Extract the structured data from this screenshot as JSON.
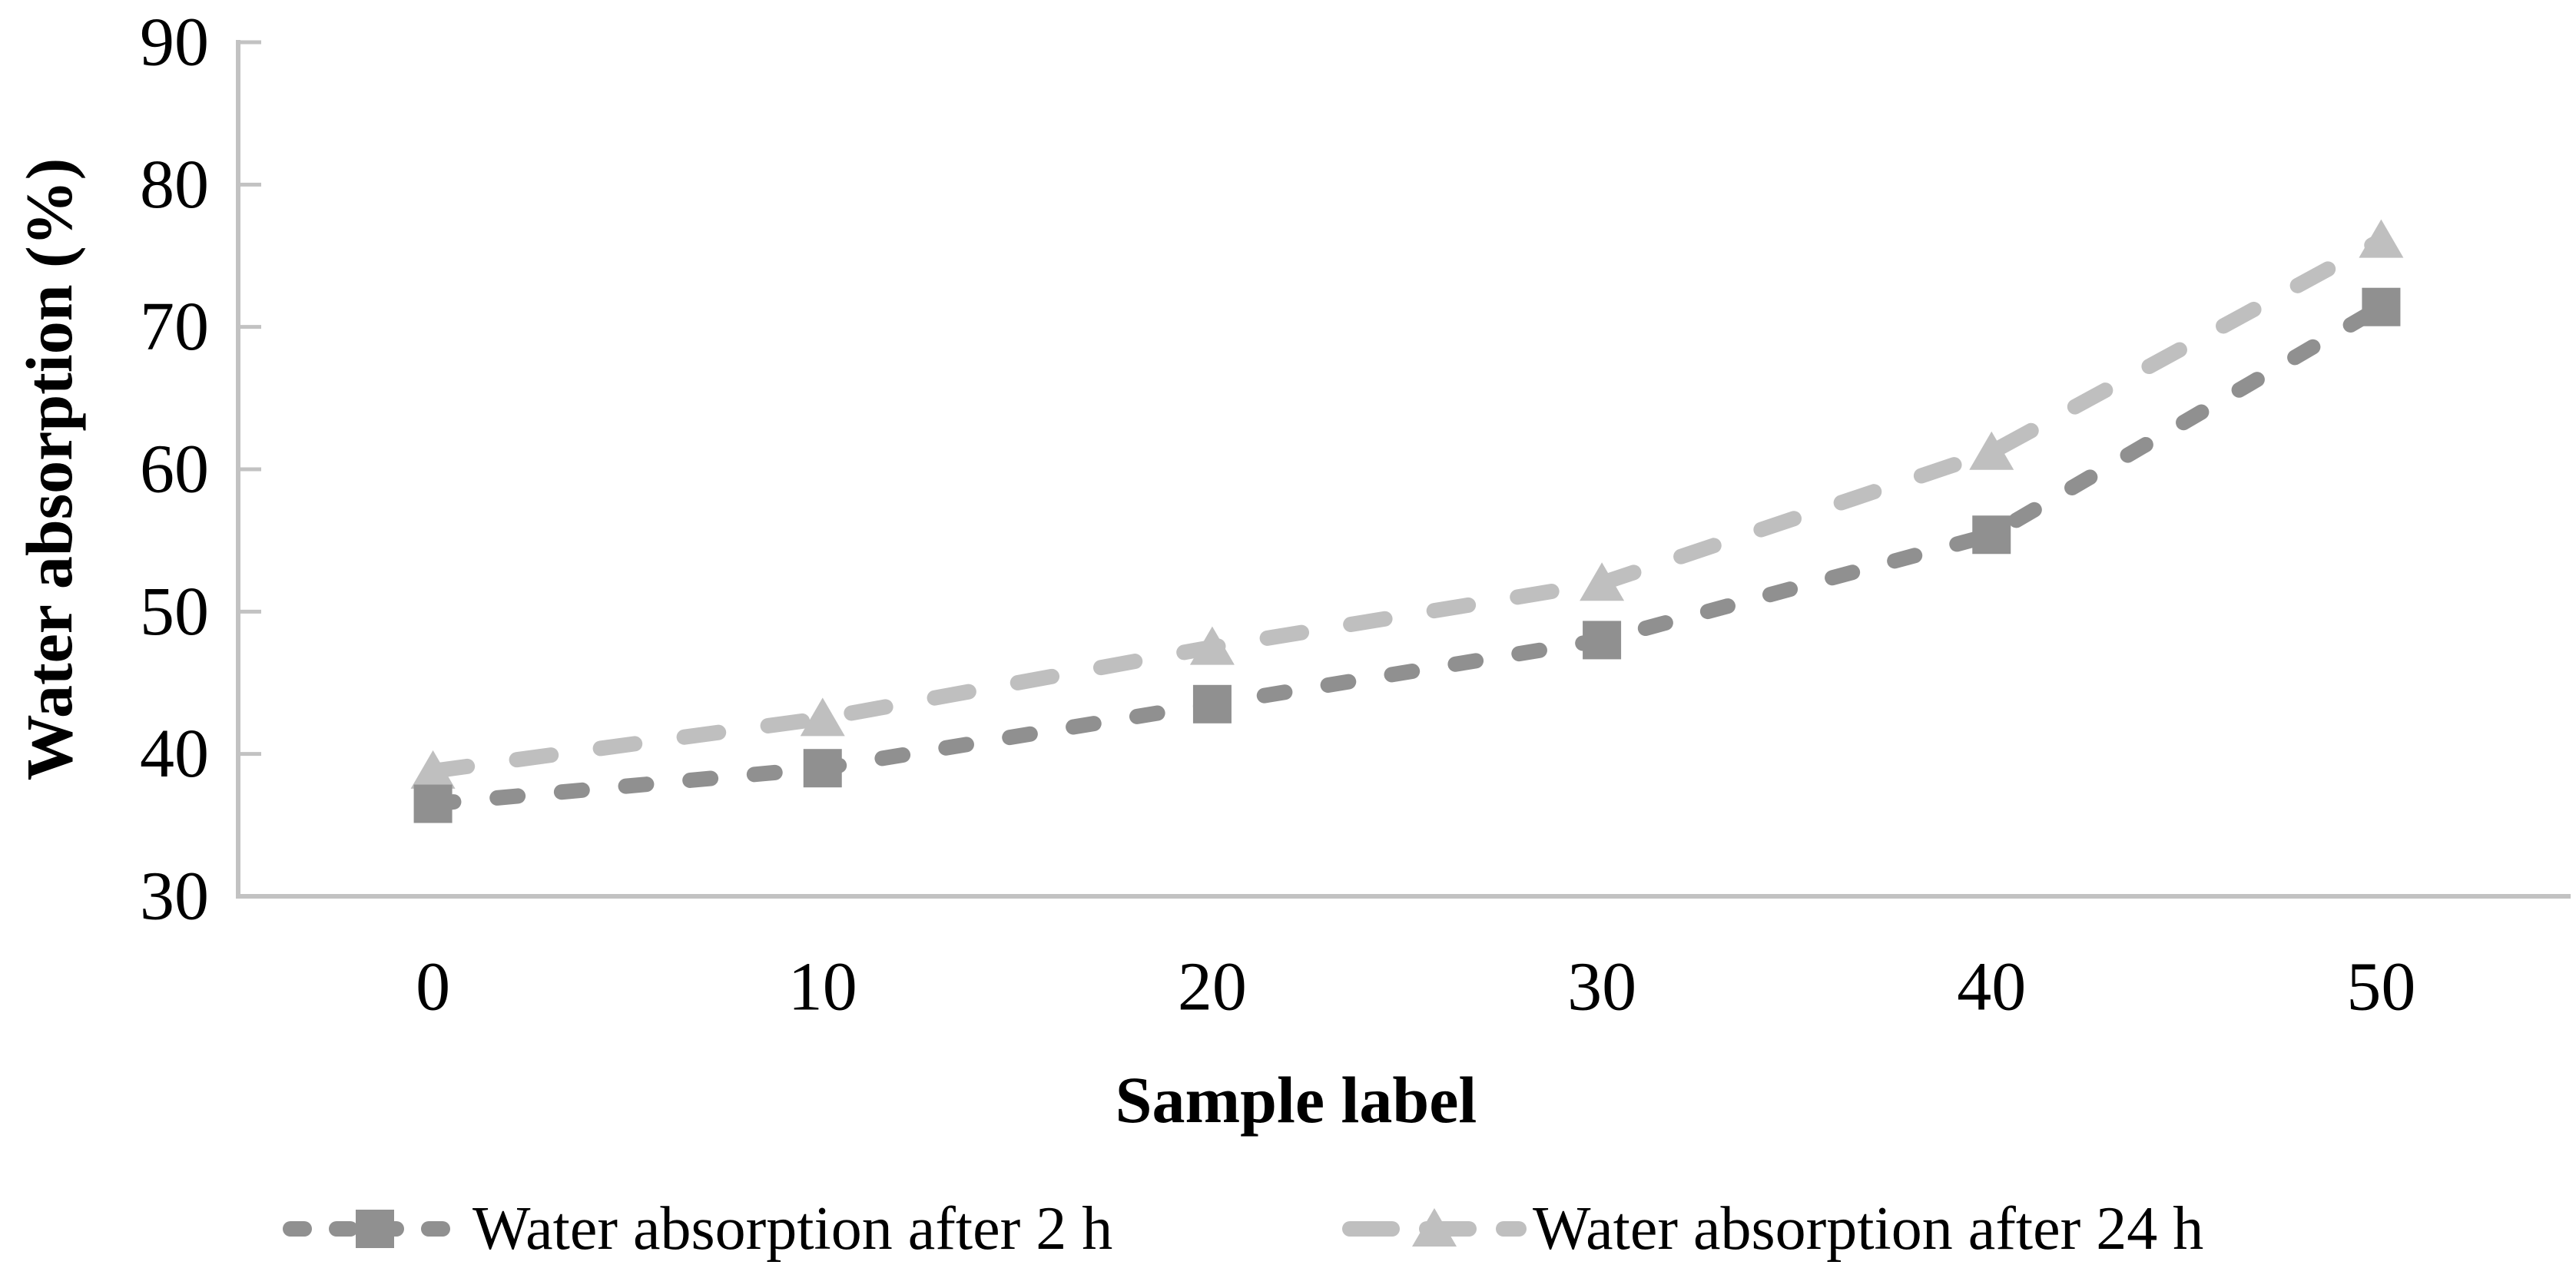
{
  "chart_data": {
    "type": "line",
    "title": "",
    "xlabel": "Sample label",
    "ylabel": "Water absorption (%)",
    "x_categories": [
      "0",
      "10",
      "20",
      "30",
      "40",
      "50"
    ],
    "yticks": [
      30,
      40,
      50,
      60,
      70,
      80,
      90
    ],
    "ylim": [
      30,
      90
    ],
    "grid": false,
    "legend_position": "bottom",
    "axis_color": "#c2c2c2",
    "text_color": "#000000",
    "series": [
      {
        "name": "Water absorption after 2 h",
        "marker": "square",
        "color": "#909090",
        "dash_pattern": [
          27,
          57
        ],
        "values": [
          36.5,
          39.0,
          43.5,
          48.0,
          55.4,
          71.4
        ]
      },
      {
        "name": "Water absorption after 24 h",
        "marker": "triangle",
        "color": "#bfbfbf",
        "dash_pattern": [
          45,
          65
        ],
        "values": [
          38.8,
          42.5,
          47.5,
          52.0,
          61.2,
          76.1
        ]
      }
    ]
  }
}
